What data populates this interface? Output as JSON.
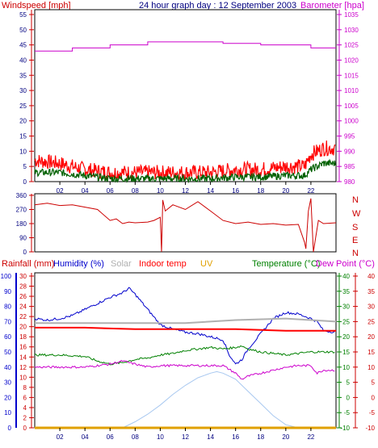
{
  "title": "24 hour graph day : 12 September 2003",
  "colors": {
    "windspeed": "#e00000",
    "gust": "#ff0000",
    "average": "#006000",
    "barometer": "#cc00cc",
    "direction": "#cc0000",
    "rainfall": "#ff0000",
    "humidity": "#0000cc",
    "solar": "#b0b0b0",
    "indoor": "#ff0000",
    "uv": "#e0a000",
    "temperature": "#008000",
    "dewpoint": "#cc00cc",
    "solar_curve": "#a8c8f0",
    "axis_red": "#cc0000",
    "axis_green": "#008000",
    "axis_magenta": "#cc00cc",
    "axis_blue": "#0000cc"
  },
  "chart_data": [
    {
      "type": "line",
      "panel": "wind",
      "left_label": "Windspeed [mph]",
      "right_label": "Barometer [hpa]",
      "x_ticks": [
        "02",
        "04",
        "06",
        "08",
        "10",
        "12",
        "14",
        "16",
        "18",
        "20",
        "22"
      ],
      "y_left_ticks": [
        "0",
        "5",
        "10",
        "15",
        "20",
        "25",
        "30",
        "35",
        "40",
        "45",
        "50",
        "55"
      ],
      "y_right_ticks": [
        "980",
        "985",
        "990",
        "995",
        "1000",
        "1005",
        "1010",
        "1015",
        "1020",
        "1025",
        "1030",
        "1035"
      ],
      "ylim_left": [
        0,
        55
      ],
      "ylim_right": [
        980,
        1035
      ],
      "xlim": [
        0,
        24
      ],
      "series": [
        {
          "name": "Barometer",
          "axis": "right",
          "color": "barometer",
          "x": [
            0,
            3,
            3,
            6,
            6,
            9,
            9,
            13,
            13,
            15,
            15,
            18,
            18,
            22,
            22,
            24
          ],
          "y": [
            1023,
            1023,
            1024,
            1024,
            1025,
            1025,
            1026,
            1026,
            1026,
            1026,
            1025.5,
            1025.5,
            1025,
            1025,
            1024,
            1024
          ]
        },
        {
          "axis": "left",
          "color": "gust",
          "noisy": true,
          "x": [
            0,
            2,
            4,
            6,
            8,
            10,
            12,
            14,
            16,
            18,
            20,
            21.5,
            22,
            23,
            24
          ],
          "y": [
            7,
            6,
            4,
            3,
            3,
            3,
            3,
            3,
            4,
            4,
            5,
            5,
            9,
            11,
            11
          ]
        },
        {
          "axis": "left",
          "color": "average",
          "noisy": true,
          "x": [
            0,
            2,
            4,
            6,
            8,
            10,
            12,
            14,
            16,
            18,
            20,
            21.5,
            22,
            23,
            24
          ],
          "y": [
            3,
            3,
            2,
            1,
            1,
            1,
            1,
            1,
            1.5,
            1.5,
            2,
            2,
            4,
            6,
            6
          ]
        }
      ]
    },
    {
      "type": "line",
      "panel": "direction",
      "right_labels": [
        "N",
        "W",
        "S",
        "E",
        "N"
      ],
      "y_left_ticks": [
        "0",
        "90",
        "180",
        "270",
        "360"
      ],
      "ylim_left": [
        0,
        360
      ],
      "xlim": [
        0,
        24
      ],
      "series": [
        {
          "color": "direction",
          "x": [
            0,
            1,
            2,
            3,
            4,
            5,
            6,
            6.5,
            7,
            7.5,
            8,
            9,
            9.5,
            10,
            10.1,
            10.2,
            10.4,
            11,
            12,
            13,
            14,
            15,
            16,
            17,
            18,
            19,
            20,
            21,
            21.5,
            21.6,
            21.8,
            22,
            22.2,
            22.6,
            23,
            24
          ],
          "y": [
            300,
            310,
            295,
            300,
            285,
            270,
            200,
            210,
            180,
            190,
            185,
            190,
            200,
            220,
            0,
            330,
            260,
            300,
            270,
            320,
            260,
            200,
            180,
            190,
            175,
            180,
            170,
            175,
            60,
            20,
            260,
            340,
            0,
            200,
            180,
            185
          ]
        }
      ]
    },
    {
      "type": "line",
      "panel": "climate",
      "legend": [
        "Rainfall (mm)",
        "Humidity (%)",
        "Solar",
        "Indoor temp",
        "UV",
        "Temperature (°C)",
        "Dew Point (°C)"
      ],
      "y_humidity_ticks": [
        "0",
        "10",
        "20",
        "30",
        "40",
        "50",
        "60",
        "70",
        "80",
        "90",
        "100"
      ],
      "y_rain_ticks": [
        "0",
        "2",
        "4",
        "6",
        "8",
        "10",
        "12",
        "14",
        "16",
        "18",
        "20",
        "22",
        "24",
        "26",
        "28",
        "30"
      ],
      "y_temp_ticks": [
        "-10",
        "-5",
        "0",
        "5",
        "10",
        "15",
        "20",
        "25",
        "30",
        "35",
        "40"
      ],
      "ylim_humidity": [
        0,
        100
      ],
      "ylim_temp": [
        -10,
        40
      ],
      "xlim": [
        0,
        24
      ],
      "series": [
        {
          "name": "Humidity",
          "axis": "humidity",
          "color": "humidity",
          "x": [
            0,
            1,
            2,
            3,
            4,
            5,
            6,
            7,
            7.5,
            8,
            9,
            10,
            11,
            12,
            13,
            14,
            15,
            15.5,
            16,
            16.5,
            17,
            18,
            19,
            20,
            21,
            22,
            22.5,
            23,
            24
          ],
          "y": [
            72,
            71,
            72,
            74,
            78,
            82,
            86,
            89,
            92,
            88,
            78,
            68,
            65,
            63,
            62,
            60,
            58,
            48,
            42,
            45,
            52,
            62,
            72,
            76,
            75,
            72,
            70,
            64,
            63
          ]
        },
        {
          "name": "Solar",
          "axis": "temp",
          "color": "solar",
          "x": [
            0,
            4,
            8,
            12,
            16,
            20,
            24
          ],
          "y": [
            24.5,
            24.5,
            24.5,
            24.5,
            25.5,
            26,
            25
          ]
        },
        {
          "name": "Indoor temp",
          "axis": "temp",
          "color": "indoor",
          "x": [
            0,
            4,
            8,
            12,
            16,
            20,
            24
          ],
          "y": [
            23,
            23,
            22.5,
            22.5,
            22.5,
            22,
            22
          ]
        },
        {
          "name": "Temperature",
          "axis": "temp",
          "color": "temperature",
          "x": [
            0,
            2,
            4,
            5,
            6,
            7,
            8,
            9,
            10,
            11,
            12,
            13,
            14,
            15,
            16,
            16.5,
            17,
            18,
            19,
            20,
            21,
            22,
            23,
            24
          ],
          "y": [
            14,
            14,
            13.5,
            12,
            11,
            11.5,
            12.5,
            13,
            14,
            14.5,
            15.5,
            16,
            16.5,
            16,
            16.5,
            17,
            16,
            15,
            14.5,
            14,
            14.5,
            15,
            15,
            15
          ]
        },
        {
          "name": "Dew Point",
          "axis": "temp",
          "color": "dewpoint",
          "x": [
            0,
            2,
            4,
            6,
            7,
            8,
            9,
            10,
            11,
            12,
            13,
            14,
            15,
            16,
            16.5,
            17,
            18,
            19,
            20,
            21,
            22,
            22.5,
            23,
            24
          ],
          "y": [
            10,
            10,
            10,
            11,
            12,
            11,
            10,
            10.5,
            10.5,
            10.5,
            10.5,
            10.5,
            10.5,
            8,
            6,
            7,
            8,
            9,
            10,
            10.5,
            10.5,
            8,
            9,
            9
          ]
        },
        {
          "name": "Solar curve",
          "axis": "temp",
          "color": "solar_curve",
          "x": [
            7,
            8,
            9,
            10,
            11,
            12,
            13,
            14,
            14.5,
            15,
            16,
            17,
            18,
            19,
            20,
            21
          ],
          "y": [
            -10,
            -8,
            -5.5,
            -2.5,
            1,
            4,
            6.5,
            8,
            8.5,
            8,
            6,
            2,
            -2,
            -6,
            -9,
            -10
          ]
        },
        {
          "name": "UV",
          "axis": "temp",
          "color": "uv",
          "x": [
            0,
            24
          ],
          "y": [
            -10,
            -10
          ]
        }
      ]
    }
  ]
}
